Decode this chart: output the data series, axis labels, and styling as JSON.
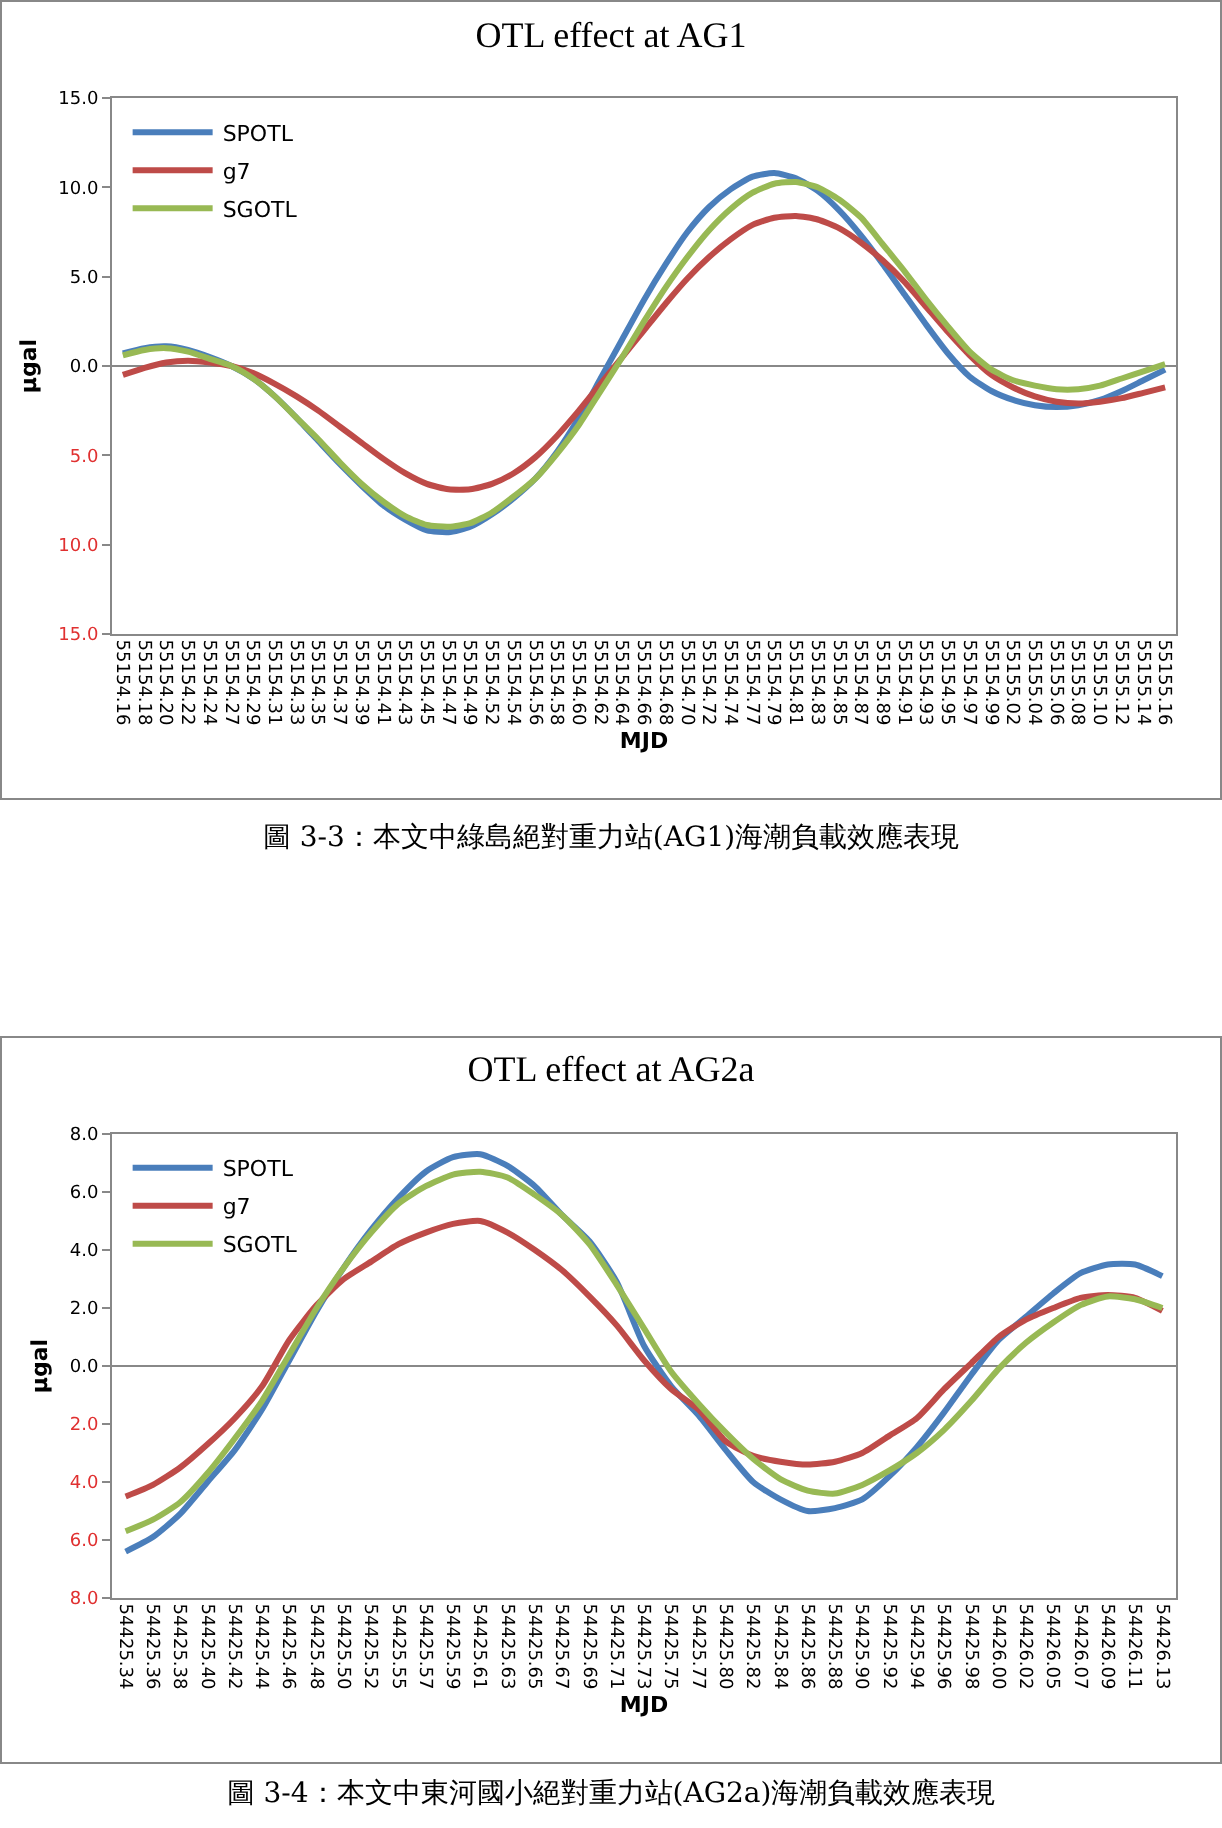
{
  "chart_data": [
    {
      "type": "line",
      "title": "OTL effect at AG1",
      "xlabel": "MJD",
      "ylabel": "µgal",
      "legend": "top left",
      "grid": false,
      "marker": "none",
      "line_style": "solid",
      "categories": [
        "55154.16",
        "55154.18",
        "55154.20",
        "55154.22",
        "55154.24",
        "55154.27",
        "55154.29",
        "55154.31",
        "55154.33",
        "55154.35",
        "55154.37",
        "55154.39",
        "55154.41",
        "55154.43",
        "55154.45",
        "55154.47",
        "55154.49",
        "55154.52",
        "55154.54",
        "55154.56",
        "55154.58",
        "55154.60",
        "55154.62",
        "55154.64",
        "55154.66",
        "55154.68",
        "55154.70",
        "55154.72",
        "55154.74",
        "55154.77",
        "55154.79",
        "55154.81",
        "55154.83",
        "55154.85",
        "55154.87",
        "55154.89",
        "55154.91",
        "55154.93",
        "55154.95",
        "55154.97",
        "55154.99",
        "55155.02",
        "55155.04",
        "55155.06",
        "55155.08",
        "55155.10",
        "55155.12",
        "55155.14",
        "55155.16"
      ],
      "ylim": [
        -15,
        15
      ],
      "yticks": [
        {
          "value": -15,
          "label": "15.0"
        },
        {
          "value": -10,
          "label": "10.0"
        },
        {
          "value": -5,
          "label": "5.0"
        },
        {
          "value": 0,
          "label": "0.0"
        },
        {
          "value": 5,
          "label": "5.0"
        },
        {
          "value": 10,
          "label": "10.0"
        },
        {
          "value": 15,
          "label": "15.0"
        }
      ],
      "annotations": [
        "圖 3-3：本文中綠島絕對重力站(AG1)海潮負載效應表現"
      ],
      "ref_lines": [
        {
          "axis": "y",
          "value": 0,
          "color": "#888888"
        }
      ],
      "series": [
        {
          "name": "SPOTL",
          "color": "#4a7ebb",
          "values": [
            0.7,
            1.0,
            1.1,
            0.9,
            0.5,
            0.0,
            -0.7,
            -1.7,
            -2.9,
            -4.2,
            -5.5,
            -6.7,
            -7.8,
            -8.6,
            -9.2,
            -9.3,
            -9.0,
            -8.3,
            -7.4,
            -6.3,
            -4.8,
            -2.9,
            -0.7,
            1.5,
            3.7,
            5.7,
            7.5,
            8.9,
            9.9,
            10.6,
            10.8,
            10.5,
            9.8,
            8.7,
            7.3,
            5.7,
            4.0,
            2.3,
            0.7,
            -0.6,
            -1.4,
            -1.9,
            -2.2,
            -2.3,
            -2.2,
            -1.9,
            -1.4,
            -0.8,
            -0.2
          ]
        },
        {
          "name": "g7",
          "color": "#be4b48",
          "values": [
            -0.5,
            -0.1,
            0.2,
            0.3,
            0.2,
            0.0,
            -0.4,
            -1.0,
            -1.7,
            -2.5,
            -3.4,
            -4.3,
            -5.2,
            -6.0,
            -6.6,
            -6.9,
            -6.9,
            -6.6,
            -6.0,
            -5.1,
            -3.9,
            -2.5,
            -1.0,
            0.5,
            2.0,
            3.5,
            4.9,
            6.1,
            7.1,
            7.9,
            8.3,
            8.4,
            8.2,
            7.7,
            6.9,
            5.9,
            4.7,
            3.3,
            1.9,
            0.6,
            -0.5,
            -1.2,
            -1.7,
            -2.0,
            -2.1,
            -2.0,
            -1.8,
            -1.5,
            -1.2
          ]
        },
        {
          "name": "SGOTL",
          "color": "#98b954",
          "values": [
            0.6,
            0.9,
            1.0,
            0.8,
            0.4,
            0.0,
            -0.7,
            -1.7,
            -2.9,
            -4.1,
            -5.4,
            -6.6,
            -7.6,
            -8.4,
            -8.9,
            -9.0,
            -8.8,
            -8.2,
            -7.3,
            -6.3,
            -4.9,
            -3.3,
            -1.4,
            0.5,
            2.5,
            4.4,
            6.1,
            7.6,
            8.8,
            9.7,
            10.2,
            10.3,
            10.0,
            9.3,
            8.3,
            6.8,
            5.3,
            3.7,
            2.2,
            0.8,
            -0.2,
            -0.8,
            -1.1,
            -1.3,
            -1.3,
            -1.1,
            -0.7,
            -0.3,
            0.1
          ]
        }
      ]
    },
    {
      "type": "line",
      "title": "OTL effect at AG2a",
      "xlabel": "MJD",
      "ylabel": "µgal",
      "legend": "top left",
      "grid": false,
      "marker": "none",
      "line_style": "solid",
      "categories": [
        "54425.34",
        "54425.36",
        "54425.38",
        "54425.40",
        "54425.42",
        "54425.44",
        "54425.46",
        "54425.48",
        "54425.50",
        "54425.52",
        "54425.55",
        "54425.57",
        "54425.59",
        "54425.61",
        "54425.63",
        "54425.65",
        "54425.67",
        "54425.69",
        "54425.71",
        "54425.73",
        "54425.75",
        "54425.77",
        "54425.80",
        "54425.82",
        "54425.84",
        "54425.86",
        "54425.88",
        "54425.90",
        "54425.92",
        "54425.94",
        "54425.96",
        "54425.98",
        "54426.00",
        "54426.02",
        "54426.05",
        "54426.07",
        "54426.09",
        "54426.11",
        "54426.13"
      ],
      "ylim": [
        -8,
        8
      ],
      "yticks": [
        {
          "value": -8,
          "label": "8.0"
        },
        {
          "value": -6,
          "label": "6.0"
        },
        {
          "value": -4,
          "label": "4.0"
        },
        {
          "value": -2,
          "label": "2.0"
        },
        {
          "value": 0,
          "label": "0.0"
        },
        {
          "value": 2,
          "label": "2.0"
        },
        {
          "value": 4,
          "label": "4.0"
        },
        {
          "value": 6,
          "label": "6.0"
        },
        {
          "value": 8,
          "label": "8.0"
        }
      ],
      "annotations": [
        "圖 3-4：本文中東河國小絕對重力站(AG2a)海潮負載效應表現"
      ],
      "ref_lines": [
        {
          "axis": "y",
          "value": 0,
          "color": "#888888"
        }
      ],
      "series": [
        {
          "name": "SPOTL",
          "color": "#4a7ebb",
          "values": [
            -6.4,
            -5.9,
            -5.1,
            -4.0,
            -2.9,
            -1.5,
            0.2,
            1.9,
            3.4,
            4.7,
            5.8,
            6.7,
            7.2,
            7.3,
            6.9,
            6.2,
            5.2,
            4.3,
            2.9,
            0.7,
            -0.7,
            -1.7,
            -2.9,
            -4.0,
            -4.6,
            -5.0,
            -4.9,
            -4.6,
            -3.8,
            -2.8,
            -1.6,
            -0.3,
            0.9,
            1.7,
            2.5,
            3.2,
            3.5,
            3.5,
            3.1
          ]
        },
        {
          "name": "g7",
          "color": "#be4b48",
          "values": [
            -4.5,
            -4.1,
            -3.5,
            -2.7,
            -1.8,
            -0.7,
            0.9,
            2.1,
            3.0,
            3.6,
            4.2,
            4.6,
            4.9,
            5.0,
            4.6,
            4.0,
            3.3,
            2.4,
            1.4,
            0.2,
            -0.8,
            -1.5,
            -2.6,
            -3.1,
            -3.3,
            -3.4,
            -3.3,
            -3.0,
            -2.4,
            -1.8,
            -0.8,
            0.1,
            1.0,
            1.6,
            2.0,
            2.35,
            2.45,
            2.35,
            1.9
          ]
        },
        {
          "name": "SGOTL",
          "color": "#98b954",
          "values": [
            -5.7,
            -5.3,
            -4.7,
            -3.7,
            -2.5,
            -1.2,
            0.4,
            2.0,
            3.4,
            4.6,
            5.6,
            6.2,
            6.6,
            6.7,
            6.5,
            5.9,
            5.2,
            4.2,
            2.8,
            1.3,
            -0.2,
            -1.3,
            -2.3,
            -3.2,
            -3.9,
            -4.3,
            -4.4,
            -4.1,
            -3.6,
            -3.0,
            -2.2,
            -1.2,
            -0.1,
            0.8,
            1.5,
            2.1,
            2.4,
            2.3,
            2.0
          ]
        }
      ]
    }
  ]
}
